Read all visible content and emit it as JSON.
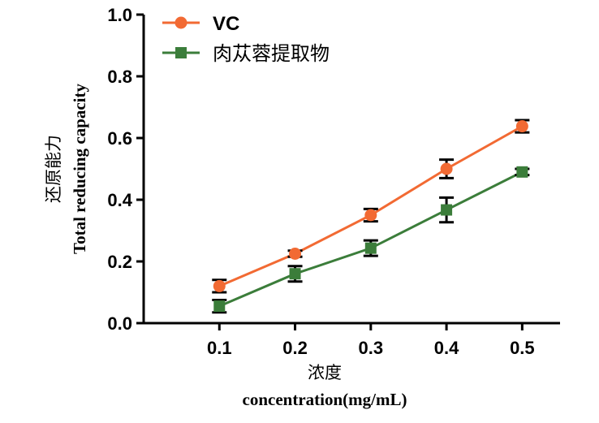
{
  "chart_data": {
    "type": "line",
    "xlabel_cn": "浓度",
    "xlabel_en": "concentration(mg/mL)",
    "ylabel_cn": "还原能力",
    "ylabel_en": "Total reducing capacity",
    "x": [
      0.1,
      0.2,
      0.3,
      0.4,
      0.5
    ],
    "x_tick_labels": [
      "0.1",
      "0.2",
      "0.3",
      "0.4",
      "0.5"
    ],
    "y_tick_labels": [
      "0.0",
      "0.2",
      "0.4",
      "0.6",
      "0.8",
      "1.0"
    ],
    "xlim": [
      0.0,
      0.55
    ],
    "ylim": [
      0.0,
      1.0
    ],
    "grid": false,
    "legend_position": "top-left",
    "series": [
      {
        "name": "VC",
        "color": "#f26a33",
        "marker": "circle",
        "values": [
          0.12,
          0.225,
          0.35,
          0.5,
          0.638
        ],
        "errors": [
          0.02,
          0.01,
          0.02,
          0.03,
          0.02
        ]
      },
      {
        "name": "肉苁蓉提取物",
        "color": "#3b7d3a",
        "marker": "square",
        "values": [
          0.055,
          0.16,
          0.243,
          0.367,
          0.49
        ],
        "errors": [
          0.02,
          0.025,
          0.025,
          0.04,
          0.01
        ]
      }
    ]
  }
}
